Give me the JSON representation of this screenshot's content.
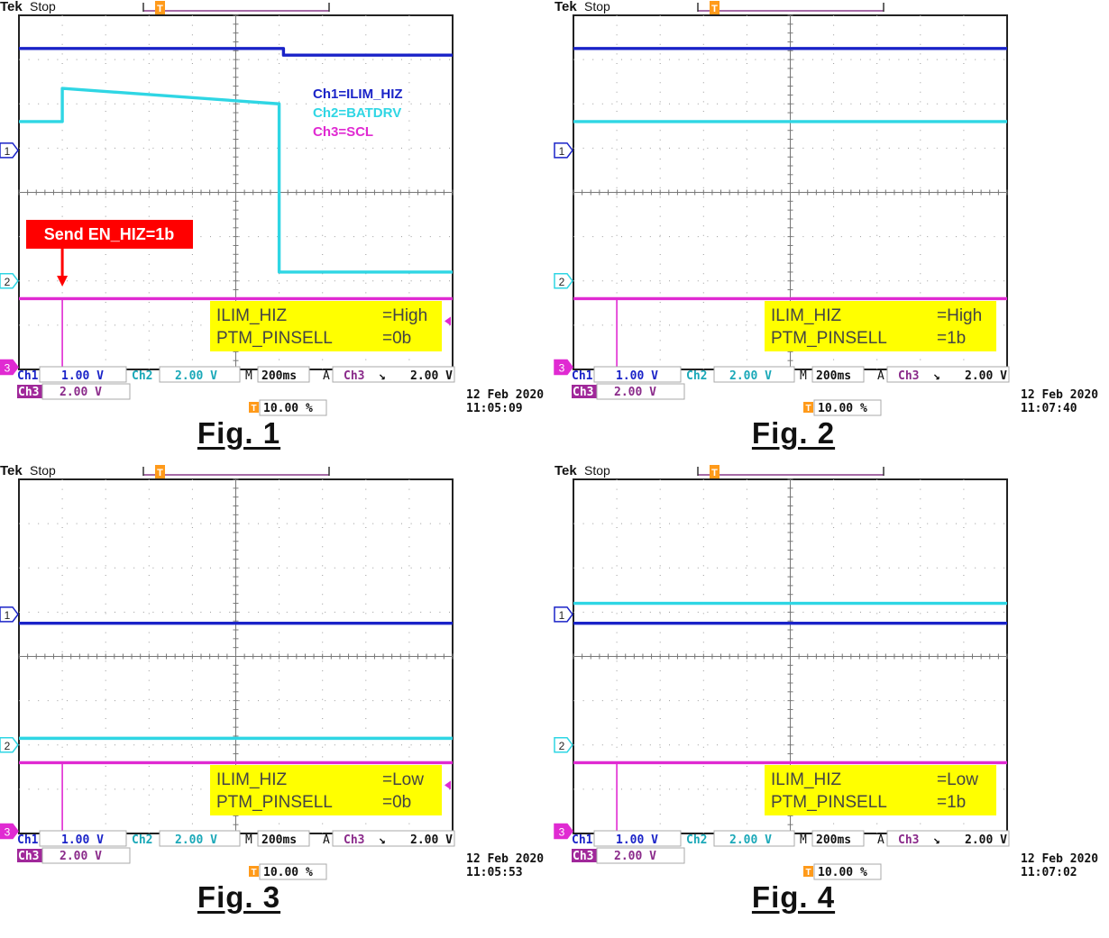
{
  "colors": {
    "ch1": "#1a23c8",
    "ch2": "#2fd6e4",
    "ch3": "#e02ad2",
    "annotation_box": "#ffff00",
    "marker": "#ff0000"
  },
  "scope": {
    "brand": "Tek",
    "state": "Stop",
    "ch1_label": "Ch1",
    "ch1_scale": "1.00 V",
    "ch2_label": "Ch2",
    "ch2_scale": "2.00 V",
    "ch3_label": "Ch3",
    "ch3_scale": "2.00 V",
    "timebase_prefix": "M",
    "timebase": "200ms",
    "trigger_prefix": "A",
    "trigger_source": "Ch3",
    "trigger_slope": "↘",
    "trigger_level": "2.00 V",
    "trigger_position": "10.00 %",
    "marker_T": "T",
    "ref_1": "1",
    "ref_2": "2",
    "ref_3": "3"
  },
  "chart_data": [
    {
      "type": "line",
      "caption": "Fig. 1",
      "date": "12 Feb  2020",
      "time": "11:05:09",
      "x_unit": "div",
      "y_unit": "div",
      "xlim": [
        0,
        10
      ],
      "ylim": [
        -4,
        4
      ],
      "legend": [
        "Ch1=ILIM_HIZ",
        "Ch2=BATDRV",
        "Ch3=SCL"
      ],
      "annotation": "Send EN_HIZ=1b",
      "info": {
        "key1": "ILIM_HIZ",
        "val1": "=High",
        "key2": "PTM_PINSELL",
        "val2": "=0b"
      },
      "series": [
        {
          "channel": "Ch1",
          "x": [
            0,
            6.1,
            6.1,
            10
          ],
          "y": [
            3.25,
            3.25,
            3.1,
            3.1
          ]
        },
        {
          "channel": "Ch2",
          "x": [
            0,
            1.0,
            1.0,
            6.0,
            6.0,
            10
          ],
          "y": [
            1.6,
            1.6,
            2.35,
            2.0,
            -1.8,
            -1.8
          ]
        },
        {
          "channel": "Ch3",
          "x": [
            0,
            10
          ],
          "y": [
            -2.4,
            -2.4
          ],
          "glitch_x": 1.0
        }
      ]
    },
    {
      "type": "line",
      "caption": "Fig. 2",
      "date": "12 Feb  2020",
      "time": "11:07:40",
      "x_unit": "div",
      "y_unit": "div",
      "xlim": [
        0,
        10
      ],
      "ylim": [
        -4,
        4
      ],
      "info": {
        "key1": "ILIM_HIZ",
        "val1": "=High",
        "key2": "PTM_PINSELL",
        "val2": "=1b"
      },
      "series": [
        {
          "channel": "Ch1",
          "x": [
            0,
            10
          ],
          "y": [
            3.25,
            3.25
          ]
        },
        {
          "channel": "Ch2",
          "x": [
            0,
            10
          ],
          "y": [
            1.6,
            1.6
          ]
        },
        {
          "channel": "Ch3",
          "x": [
            0,
            10
          ],
          "y": [
            -2.4,
            -2.4
          ],
          "glitch_x": 1.0
        }
      ]
    },
    {
      "type": "line",
      "caption": "Fig. 3",
      "date": "12 Feb  2020",
      "time": "11:05:53",
      "x_unit": "div",
      "y_unit": "div",
      "xlim": [
        0,
        10
      ],
      "ylim": [
        -4,
        4
      ],
      "info": {
        "key1": "ILIM_HIZ",
        "val1": "=Low",
        "key2": "PTM_PINSELL",
        "val2": "=0b"
      },
      "series": [
        {
          "channel": "Ch1",
          "x": [
            0,
            10
          ],
          "y": [
            0.75,
            0.75
          ]
        },
        {
          "channel": "Ch2",
          "x": [
            0,
            10
          ],
          "y": [
            -1.85,
            -1.85
          ]
        },
        {
          "channel": "Ch3",
          "x": [
            0,
            10
          ],
          "y": [
            -2.4,
            -2.4
          ],
          "glitch_x": 1.0
        }
      ]
    },
    {
      "type": "line",
      "caption": "Fig. 4",
      "date": "12 Feb  2020",
      "time": "11:07:02",
      "x_unit": "div",
      "y_unit": "div",
      "xlim": [
        0,
        10
      ],
      "ylim": [
        -4,
        4
      ],
      "info": {
        "key1": "ILIM_HIZ",
        "val1": "=Low",
        "key2": "PTM_PINSELL",
        "val2": "=1b"
      },
      "series": [
        {
          "channel": "Ch1",
          "x": [
            0,
            10
          ],
          "y": [
            0.75,
            0.75
          ]
        },
        {
          "channel": "Ch2",
          "x": [
            0,
            10
          ],
          "y": [
            1.2,
            1.2
          ]
        },
        {
          "channel": "Ch3",
          "x": [
            0,
            10
          ],
          "y": [
            -2.4,
            -2.4
          ],
          "glitch_x": 1.0
        }
      ]
    }
  ]
}
